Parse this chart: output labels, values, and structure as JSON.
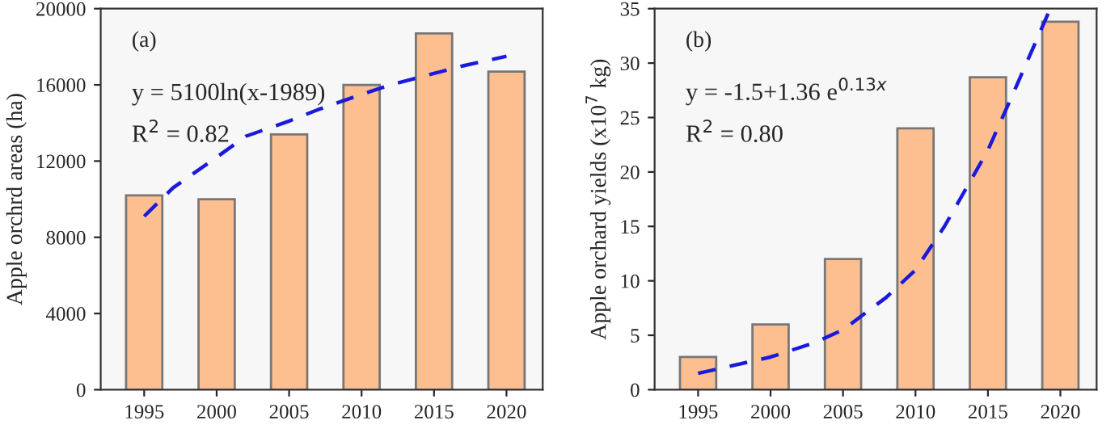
{
  "chart_data": [
    {
      "type": "bar",
      "x": [
        1995,
        2000,
        2005,
        2010,
        2015,
        2020
      ],
      "ylabel": "Apple orchrd areas (ha)",
      "xlim": [
        1992,
        2022.5
      ],
      "xticks": [
        1995,
        2000,
        2005,
        2010,
        2015,
        2020
      ],
      "ylim": [
        0,
        20000
      ],
      "yticks": [
        0,
        4000,
        8000,
        12000,
        16000,
        20000
      ],
      "annotations": [
        "(a)",
        "y = 5100ln(x-1989)",
        "R$^{2}$ = 0.82"
      ],
      "series": [
        {
          "color": "#fdbf90",
          "values": [
            10200,
            10000,
            13400,
            16000,
            18700,
            16700
          ]
        },
        {
          "type": "line",
          "color": "#1a1adb",
          "line_style": "dashed",
          "marker": "none",
          "x": [
            1995,
            1997,
            2000,
            2002,
            2005,
            2007,
            2010,
            2012,
            2015,
            2017,
            2020
          ],
          "values": [
            9100,
            10600,
            12200,
            13300,
            14100,
            14700,
            15500,
            16000,
            16600,
            17000,
            17500
          ]
        }
      ]
    },
    {
      "type": "bar",
      "x": [
        1995,
        2000,
        2005,
        2010,
        2015,
        2020
      ],
      "ylabel": "Apple orchard yields (x10$^{7}$ kg)",
      "xlim": [
        1992,
        2022.5
      ],
      "xticks": [
        1995,
        2000,
        2005,
        2010,
        2015,
        2020
      ],
      "ylim": [
        0,
        35
      ],
      "yticks": [
        0,
        5,
        10,
        15,
        20,
        25,
        30,
        35
      ],
      "annotations": [
        "(b)",
        "y = -1.5+1.36 e$^{0.13x}$",
        "R$^{2}$ = 0.80"
      ],
      "series": [
        {
          "color": "#fdbf90",
          "values": [
            3,
            6,
            12,
            24,
            28.7,
            33.8
          ]
        },
        {
          "type": "line",
          "color": "#1a1adb",
          "line_style": "dashed",
          "marker": "none",
          "x": [
            1995,
            2000,
            2003,
            2005,
            2008,
            2010,
            2012,
            2015,
            2017,
            2019.3
          ],
          "values": [
            1.5,
            3,
            4.3,
            5.5,
            8.5,
            11,
            15,
            22,
            28,
            35
          ]
        }
      ]
    }
  ]
}
